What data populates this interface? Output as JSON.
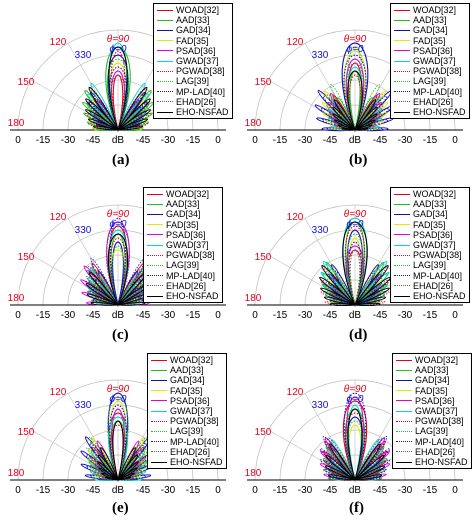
{
  "legend": [
    {
      "label": "WOAD[32]",
      "color": "#e8001c",
      "dash": "solid"
    },
    {
      "label": "AAD[33]",
      "color": "#22c122",
      "dash": "solid"
    },
    {
      "label": "GAD[34]",
      "color": "#1010b0",
      "dash": "solid"
    },
    {
      "label": "FAD[35]",
      "color": "#e6e600",
      "dash": "solid"
    },
    {
      "label": "PSAD[36]",
      "color": "#e000e0",
      "dash": "solid"
    },
    {
      "label": "GWAD[37]",
      "color": "#00d8d8",
      "dash": "solid"
    },
    {
      "label": "PGWAD[38]",
      "color": "#e8001c",
      "dash": "dot"
    },
    {
      "label": "LAG[39]",
      "color": "#22c122",
      "dash": "dot"
    },
    {
      "label": "MP-LAD[40]",
      "color": "#1010e0",
      "dash": "dot"
    },
    {
      "label": "EHAD[26]",
      "color": "#666666",
      "dash": "dot"
    },
    {
      "label": "EHO-NSFAD",
      "color": "#000000",
      "dash": "solid"
    }
  ],
  "chart_data": [
    {
      "type": "polar-pattern",
      "caption": "(a)",
      "angle_labels": [
        "θ=90",
        "ϕ=0",
        "120",
        "330",
        "150",
        "180"
      ],
      "radial_tick_labels": [
        "0",
        "-15",
        "-30",
        "-45",
        "dB",
        "-45",
        "-30",
        "-15",
        "0"
      ]
    },
    {
      "type": "polar-pattern",
      "caption": "(b)",
      "angle_labels": [
        "θ=90",
        "ϕ=0",
        "120",
        "330",
        "150",
        "180"
      ],
      "radial_tick_labels": [
        "0",
        "-15",
        "-30",
        "-45",
        "dB",
        "-45",
        "-30",
        "-15",
        "0"
      ]
    },
    {
      "type": "polar-pattern",
      "caption": "(c)",
      "angle_labels": [
        "θ=90",
        "ϕ=0",
        "120",
        "330",
        "150",
        "180"
      ],
      "radial_tick_labels": [
        "0",
        "-15",
        "-30",
        "-45",
        "dB",
        "-45",
        "-30",
        "-15",
        "0"
      ]
    },
    {
      "type": "polar-pattern",
      "caption": "(d)",
      "angle_labels": [
        "θ=90",
        "ϕ=0",
        "120",
        "330",
        "150",
        "180"
      ],
      "radial_tick_labels": [
        "0",
        "-15",
        "-30",
        "-45",
        "dB",
        "-45",
        "-30",
        "-15",
        "0"
      ]
    },
    {
      "type": "polar-pattern",
      "caption": "(e)",
      "angle_labels": [
        "θ=90",
        "ϕ=0",
        "120",
        "330",
        "150",
        "180"
      ],
      "radial_tick_labels": [
        "0",
        "-15",
        "-30",
        "-45",
        "dB",
        "-45",
        "-30",
        "-15",
        "0"
      ]
    },
    {
      "type": "polar-pattern",
      "caption": "(f)",
      "angle_labels": [
        "θ=90",
        "ϕ=0",
        "120",
        "330",
        "150",
        "180"
      ],
      "radial_tick_labels": [
        "0",
        "-15",
        "-30",
        "-45",
        "dB",
        "-45",
        "-30",
        "-15",
        "0"
      ]
    }
  ]
}
